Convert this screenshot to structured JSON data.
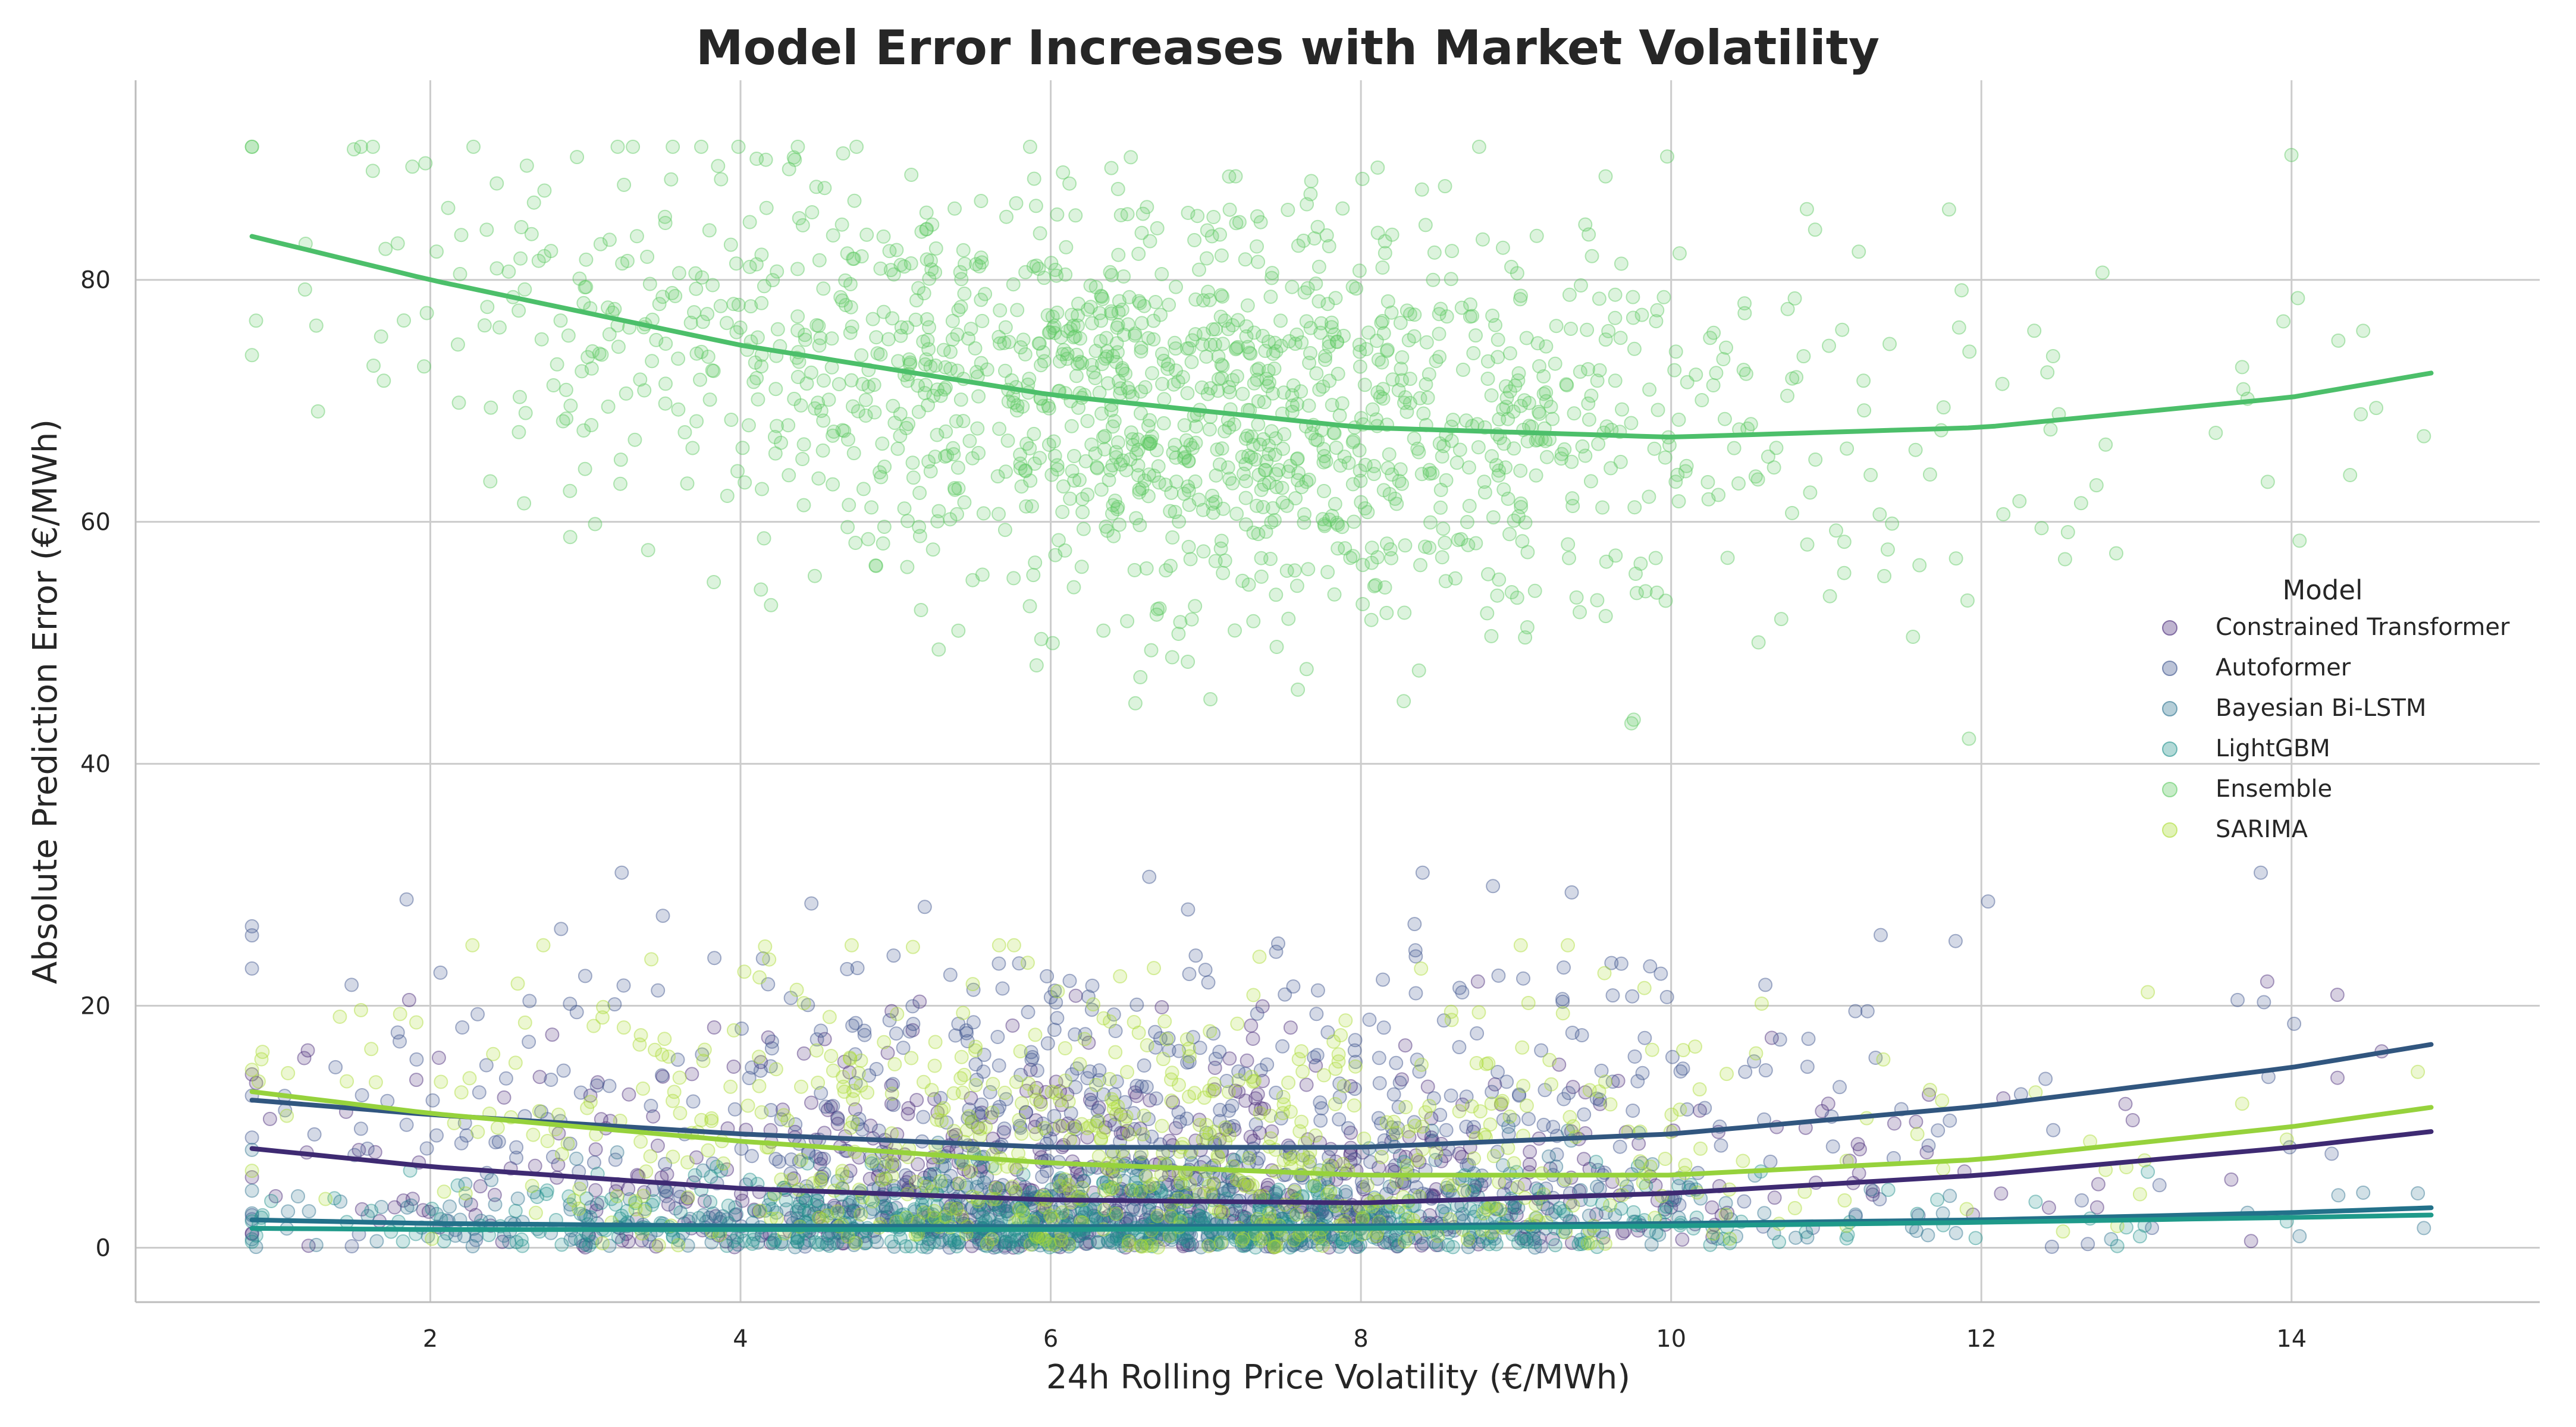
{
  "chart_data": {
    "type": "scatter",
    "title": "Model Error Increases with Market Volatility",
    "xlabel": "24h Rolling Price Volatility (€/MWh)",
    "ylabel": "Absolute Prediction Error (€/MWh)",
    "xlim": [
      0.1,
      15.6
    ],
    "ylim": [
      -4.5,
      96.5
    ],
    "xticks": [
      2,
      4,
      6,
      8,
      10,
      12,
      14
    ],
    "yticks": [
      0,
      20,
      40,
      60,
      80
    ],
    "grid": true,
    "legend": {
      "title": "Model",
      "position": "right"
    },
    "series": [
      {
        "name": "Constrained Transformer",
        "color": "#482878",
        "line_color": "#3e2a72",
        "trend": [
          [
            0.85,
            8.2
          ],
          [
            2,
            6.7
          ],
          [
            4,
            4.9
          ],
          [
            6,
            3.95
          ],
          [
            8,
            3.7
          ],
          [
            10,
            4.5
          ],
          [
            12,
            6.0
          ],
          [
            14,
            8.3
          ],
          [
            14.9,
            9.6
          ]
        ],
        "cloud": {
          "x_range": [
            0.85,
            14.9
          ],
          "x_center": 6.3,
          "x_spread": 2.1,
          "y_range": [
            0,
            22
          ]
        }
      },
      {
        "name": "Autoformer",
        "color": "#3b528b",
        "line_color": "#31567f",
        "trend": [
          [
            0.85,
            12.2
          ],
          [
            2,
            11.0
          ],
          [
            4,
            9.4
          ],
          [
            6,
            8.3
          ],
          [
            8,
            8.3
          ],
          [
            10,
            9.4
          ],
          [
            12,
            11.7
          ],
          [
            14,
            14.9
          ],
          [
            14.9,
            16.8
          ]
        ],
        "cloud": {
          "x_range": [
            0.85,
            14.9
          ],
          "x_center": 6.5,
          "x_spread": 2.2,
          "y_range": [
            0,
            31
          ]
        }
      },
      {
        "name": "Bayesian Bi-LSTM",
        "color": "#2c728e",
        "line_color": "#23718a",
        "trend": [
          [
            0.85,
            2.3
          ],
          [
            2,
            2.0
          ],
          [
            4,
            1.8
          ],
          [
            6,
            1.75
          ],
          [
            8,
            1.8
          ],
          [
            10,
            2.0
          ],
          [
            12,
            2.3
          ],
          [
            14,
            2.9
          ],
          [
            14.9,
            3.3
          ]
        ],
        "cloud": {
          "x_range": [
            0.85,
            14.9
          ],
          "x_center": 6.3,
          "x_spread": 2.2,
          "y_range": [
            0,
            10
          ]
        }
      },
      {
        "name": "LightGBM",
        "color": "#21918c",
        "line_color": "#1f9a8a",
        "trend": [
          [
            0.85,
            1.6
          ],
          [
            2,
            1.5
          ],
          [
            4,
            1.5
          ],
          [
            6,
            1.5
          ],
          [
            8,
            1.6
          ],
          [
            10,
            1.8
          ],
          [
            12,
            2.1
          ],
          [
            14,
            2.5
          ],
          [
            14.9,
            2.7
          ]
        ],
        "cloud": {
          "x_range": [
            0.85,
            14.9
          ],
          "x_center": 6.3,
          "x_spread": 2.2,
          "y_range": [
            0,
            8
          ]
        }
      },
      {
        "name": "Ensemble",
        "color": "#5ec962",
        "line_color": "#4cbf6a",
        "trend": [
          [
            0.85,
            83.6
          ],
          [
            2,
            80.0
          ],
          [
            4,
            74.6
          ],
          [
            6,
            70.5
          ],
          [
            8,
            67.8
          ],
          [
            10,
            67.0
          ],
          [
            12,
            67.8
          ],
          [
            14,
            70.3
          ],
          [
            14.9,
            72.3
          ]
        ],
        "cloud": {
          "x_range": [
            0.85,
            14.9
          ],
          "x_center": 6.8,
          "x_spread": 2.0,
          "y_range": [
            39.5,
            91
          ]
        }
      },
      {
        "name": "SARIMA",
        "color": "#aadc32",
        "line_color": "#96d23c",
        "trend": [
          [
            0.85,
            12.9
          ],
          [
            2,
            11.1
          ],
          [
            4,
            8.8
          ],
          [
            6,
            7.0
          ],
          [
            8,
            6.0
          ],
          [
            10,
            6.0
          ],
          [
            12,
            7.3
          ],
          [
            14,
            10.0
          ],
          [
            14.9,
            11.6
          ]
        ],
        "cloud": {
          "x_range": [
            0.85,
            14.9
          ],
          "x_center": 6.5,
          "x_spread": 2.1,
          "y_range": [
            0,
            25
          ]
        }
      }
    ]
  }
}
